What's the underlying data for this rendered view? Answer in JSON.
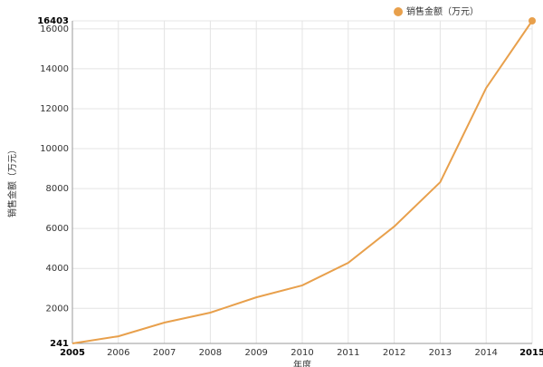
{
  "chart_data": {
    "type": "line",
    "y_label": "销售金额（万元）",
    "x_label": "年度",
    "categories": [
      "2005",
      "2006",
      "2007",
      "2008",
      "2009",
      "2010",
      "2011",
      "2012",
      "2013",
      "2014",
      "2015"
    ],
    "series": [
      {
        "name": "销售金额（万元）",
        "color": "#e8a04c",
        "values": [
          241,
          600,
          1285,
          1785,
          2550,
          3150,
          4280,
          6100,
          8320,
          13040,
          16403
        ]
      }
    ],
    "ylim": [
      241,
      16403
    ],
    "yticks": [
      241,
      2000,
      4000,
      6000,
      8000,
      10000,
      12000,
      14000,
      16000,
      16403
    ],
    "grid": true,
    "legend": "top-right"
  }
}
